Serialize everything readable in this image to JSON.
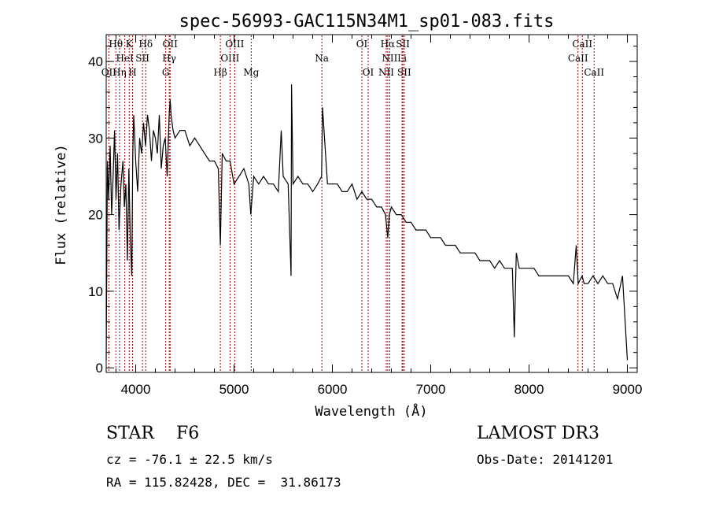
{
  "chart_data": {
    "type": "line",
    "title": "spec-56993-GAC115N34M1_sp01-083.fits",
    "xlabel": "Wavelength (Å)",
    "ylabel": "Flux (relative)",
    "xlim": [
      3700,
      9100
    ],
    "ylim": [
      -0.6,
      43.5
    ],
    "xticks": [
      4000,
      5000,
      6000,
      7000,
      8000,
      9000
    ],
    "yticks": [
      0,
      10,
      20,
      30,
      40
    ],
    "line_color": "#000000",
    "marker_color": "#aa0000",
    "series": [
      {
        "name": "flux",
        "x": [
          3700,
          3712,
          3725,
          3740,
          3755,
          3770,
          3785,
          3800,
          3815,
          3830,
          3850,
          3870,
          3885,
          3900,
          3915,
          3930,
          3945,
          3960,
          3970,
          3980,
          4000,
          4020,
          4040,
          4060,
          4080,
          4100,
          4120,
          4140,
          4160,
          4180,
          4200,
          4220,
          4240,
          4260,
          4280,
          4300,
          4320,
          4340,
          4350,
          4360,
          4380,
          4400,
          4450,
          4500,
          4550,
          4600,
          4650,
          4700,
          4750,
          4800,
          4840,
          4861,
          4880,
          4920,
          4960,
          5000,
          5050,
          5100,
          5150,
          5170,
          5200,
          5250,
          5300,
          5350,
          5400,
          5450,
          5480,
          5500,
          5550,
          5580,
          5585,
          5600,
          5650,
          5700,
          5750,
          5800,
          5850,
          5890,
          5900,
          5950,
          6000,
          6050,
          6100,
          6150,
          6200,
          6250,
          6300,
          6350,
          6400,
          6450,
          6500,
          6540,
          6563,
          6580,
          6600,
          6650,
          6700,
          6750,
          6800,
          6850,
          6900,
          6950,
          7000,
          7050,
          7100,
          7150,
          7200,
          7250,
          7300,
          7350,
          7400,
          7450,
          7500,
          7550,
          7600,
          7650,
          7700,
          7750,
          7800,
          7830,
          7850,
          7870,
          7900,
          7950,
          8000,
          8050,
          8100,
          8150,
          8200,
          8250,
          8300,
          8350,
          8400,
          8450,
          8480,
          8500,
          8540,
          8560,
          8600,
          8650,
          8700,
          8750,
          8800,
          8850,
          8900,
          8950,
          9000
        ],
        "y": [
          1,
          27,
          22,
          29,
          20,
          25,
          31,
          22,
          28,
          18,
          24,
          27,
          21,
          24,
          14,
          26,
          17,
          12,
          28,
          33,
          27,
          23,
          30,
          28,
          32,
          29,
          33,
          31,
          27,
          31,
          30,
          28,
          33,
          26,
          29,
          30,
          25,
          33,
          35,
          33,
          31,
          30,
          31,
          31,
          29,
          30,
          29,
          28,
          27,
          27,
          26,
          16,
          28,
          27,
          27,
          24,
          25,
          26,
          24,
          20,
          25,
          24,
          25,
          24,
          24,
          23,
          31,
          25,
          24,
          12,
          37,
          24,
          25,
          24,
          24,
          23,
          24,
          25,
          34,
          24,
          24,
          24,
          23,
          23,
          24,
          22,
          23,
          22,
          22,
          21,
          21,
          20,
          17,
          20,
          21,
          20,
          20,
          19,
          19,
          18,
          18,
          18,
          17,
          17,
          17,
          16,
          16,
          16,
          15,
          15,
          15,
          15,
          14,
          14,
          14,
          13,
          14,
          13,
          13,
          13,
          4,
          15,
          13,
          13,
          13,
          13,
          12,
          12,
          12,
          12,
          12,
          12,
          12,
          11,
          16,
          11,
          12,
          11,
          11,
          12,
          11,
          12,
          11,
          11,
          9,
          12,
          1
        ]
      }
    ],
    "lines": [
      {
        "label": "Hθ",
        "wl": 3798,
        "row": 1
      },
      {
        "label": "K",
        "wl": 3934,
        "row": 1
      },
      {
        "label": "Hδ",
        "wl": 4102,
        "row": 1
      },
      {
        "label": "OII",
        "wl": 4350,
        "row": 1
      },
      {
        "label": "OIII",
        "wl": 5007,
        "row": 1
      },
      {
        "label": "OI",
        "wl": 6300,
        "row": 1
      },
      {
        "label": "Hα",
        "wl": 6563,
        "row": 1
      },
      {
        "label": "SII",
        "wl": 6717,
        "row": 1
      },
      {
        "label": "CaII",
        "wl": 8542,
        "row": 1
      },
      {
        "label": "HeI",
        "wl": 3889,
        "row": 2
      },
      {
        "label": "SII",
        "wl": 4069,
        "row": 2
      },
      {
        "label": "Hγ",
        "wl": 4341,
        "row": 2
      },
      {
        "label": "OIII",
        "wl": 4959,
        "row": 2
      },
      {
        "label": "Na",
        "wl": 5893,
        "row": 2
      },
      {
        "label": "NII",
        "wl": 6583,
        "row": 2
      },
      {
        "label": "Li",
        "wl": 6708,
        "row": 2
      },
      {
        "label": "CaII",
        "wl": 8498,
        "row": 2
      },
      {
        "label": "OII",
        "wl": 3727,
        "row": 3
      },
      {
        "label": "Hη",
        "wl": 3835,
        "row": 3
      },
      {
        "label": "H",
        "wl": 3968,
        "row": 3
      },
      {
        "label": "G",
        "wl": 4305,
        "row": 3
      },
      {
        "label": "Hβ",
        "wl": 4861,
        "row": 3
      },
      {
        "label": "Mg",
        "wl": 5175,
        "row": 3
      },
      {
        "label": "OI",
        "wl": 6364,
        "row": 3
      },
      {
        "label": "NII",
        "wl": 6548,
        "row": 3
      },
      {
        "label": "SII",
        "wl": 6731,
        "row": 3
      },
      {
        "label": "CaII",
        "wl": 8662,
        "row": 3
      }
    ]
  },
  "info": {
    "class": "STAR    F6",
    "survey": "LAMOST DR3",
    "cz": "cz = -76.1 ± 22.5 km/s",
    "obs_date": "Obs-Date: 20141201",
    "coords": "RA = 115.82428, DEC =  31.86173"
  }
}
